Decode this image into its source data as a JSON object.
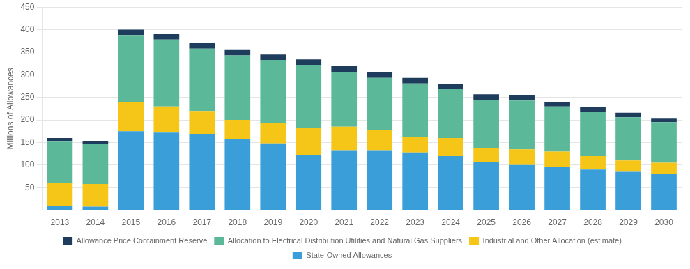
{
  "chart_data": {
    "type": "bar",
    "stacked": true,
    "ylabel": "Millions of Allowances",
    "categories": [
      "2013",
      "2014",
      "2015",
      "2016",
      "2017",
      "2018",
      "2019",
      "2020",
      "2021",
      "2022",
      "2023",
      "2024",
      "2025",
      "2026",
      "2027",
      "2028",
      "2029",
      "2030"
    ],
    "series": [
      {
        "name": "State-Owned Allowances",
        "color": "#3A9FD8",
        "values": [
          10,
          8,
          175,
          172,
          168,
          158,
          148,
          122,
          133,
          133,
          128,
          120,
          107,
          100,
          95,
          90,
          85,
          80
        ]
      },
      {
        "name": "Industrial and Other Allocation (estimate)",
        "color": "#F5C518",
        "values": [
          50,
          50,
          65,
          58,
          52,
          42,
          45,
          60,
          52,
          45,
          35,
          40,
          30,
          35,
          35,
          30,
          25,
          25
        ]
      },
      {
        "name": "Allocation to Electrical Distribution Utilities and Natural Gas Suppliers",
        "color": "#5BB99A",
        "values": [
          92,
          88,
          148,
          148,
          138,
          143,
          140,
          140,
          120,
          115,
          118,
          108,
          108,
          108,
          100,
          98,
          96,
          90
        ]
      },
      {
        "name": "Allowance Price Containment Reserve",
        "color": "#1E3D5C",
        "values": [
          8,
          8,
          12,
          12,
          12,
          12,
          12,
          12,
          15,
          12,
          12,
          12,
          12,
          12,
          10,
          10,
          10,
          8
        ]
      }
    ],
    "ylim": [
      0,
      450
    ],
    "yticks": [
      50,
      100,
      150,
      200,
      250,
      300,
      350,
      400,
      450
    ],
    "grid": true,
    "legend": "bottom"
  }
}
